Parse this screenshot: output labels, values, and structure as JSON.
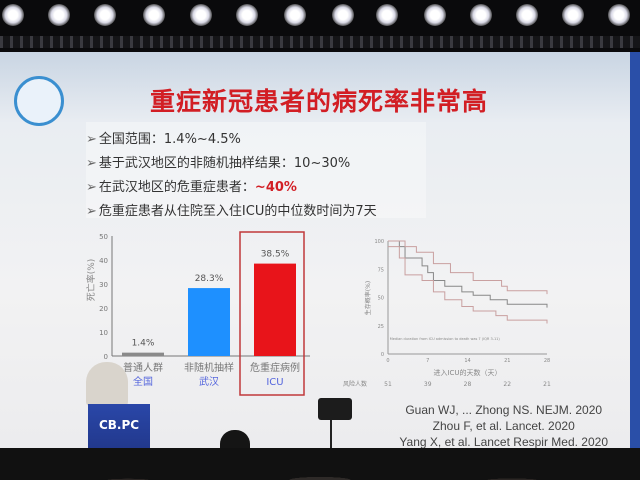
{
  "slide": {
    "title": "重症新冠患者的病死率非常高",
    "bullets": [
      {
        "text": "全国范围：1.4%~4.5%",
        "highlight": ""
      },
      {
        "text": "基于武汉地区的非随机抽样结果：10~30%",
        "highlight": ""
      },
      {
        "text": "在武汉地区的危重症患者：",
        "highlight": "~40%"
      },
      {
        "text": "危重症患者从住院至入住ICU的中位数时间为7天",
        "highlight": ""
      }
    ],
    "references": [
      "Guan WJ, ... Zhong NS. NEJM. 2020",
      "Zhou F, et al. Lancet. 2020",
      "Yang X, et al. Lancet Respir Med. 2020"
    ],
    "colors": {
      "title": "#d21e24",
      "bar_gray": "#8a8a8a",
      "bar_blue": "#1e90ff",
      "bar_red": "#e8141a"
    }
  },
  "podium": {
    "brand": "CB.PC"
  },
  "chart_data": [
    {
      "type": "bar",
      "ylabel": "死亡率(%)",
      "ylim": [
        0,
        50
      ],
      "yticks": [
        0,
        10,
        20,
        30,
        40,
        50
      ],
      "categories": [
        [
          "普通人群",
          "全国"
        ],
        [
          "非随机抽样",
          "武汉"
        ],
        [
          "危重症病例",
          "ICU"
        ]
      ],
      "values": [
        1.4,
        28.3,
        38.5
      ],
      "labels": [
        "1.4%",
        "28.3%",
        "38.5%"
      ],
      "highlighted": "ICU"
    },
    {
      "type": "line",
      "ylabel": "生存概率(%)",
      "xlabel": "进入ICU的天数（天）",
      "xlim": [
        0,
        28
      ],
      "ylim": [
        0,
        100
      ],
      "xticks": [
        0,
        7,
        14,
        21,
        28
      ],
      "yticks": [
        0,
        25,
        50,
        75,
        100
      ],
      "annotation": "Median duration from ICU admission to death was 7 (IQR 3-11)",
      "risk_label": "风险人数",
      "risk_counts": [
        51,
        39,
        28,
        22,
        21
      ],
      "series": [
        {
          "role": "estimate",
          "points": [
            [
              0,
              100
            ],
            [
              2,
              95
            ],
            [
              3,
              85
            ],
            [
              6,
              78
            ],
            [
              7,
              72
            ],
            [
              8,
              65
            ],
            [
              10,
              60
            ],
            [
              13,
              55
            ],
            [
              15,
              52
            ],
            [
              18,
              48
            ],
            [
              21,
              44
            ],
            [
              28,
              41
            ]
          ]
        },
        {
          "role": "upper",
          "points": [
            [
              0,
              100
            ],
            [
              3,
              95
            ],
            [
              5,
              90
            ],
            [
              8,
              80
            ],
            [
              11,
              72
            ],
            [
              15,
              65
            ],
            [
              20,
              60
            ],
            [
              21,
              56
            ],
            [
              28,
              53
            ]
          ]
        },
        {
          "role": "lower",
          "points": [
            [
              0,
              95
            ],
            [
              2,
              85
            ],
            [
              3,
              70
            ],
            [
              6,
              65
            ],
            [
              8,
              55
            ],
            [
              10,
              48
            ],
            [
              13,
              42
            ],
            [
              15,
              38
            ],
            [
              19,
              34
            ],
            [
              21,
              30
            ],
            [
              28,
              27
            ]
          ]
        }
      ]
    }
  ]
}
